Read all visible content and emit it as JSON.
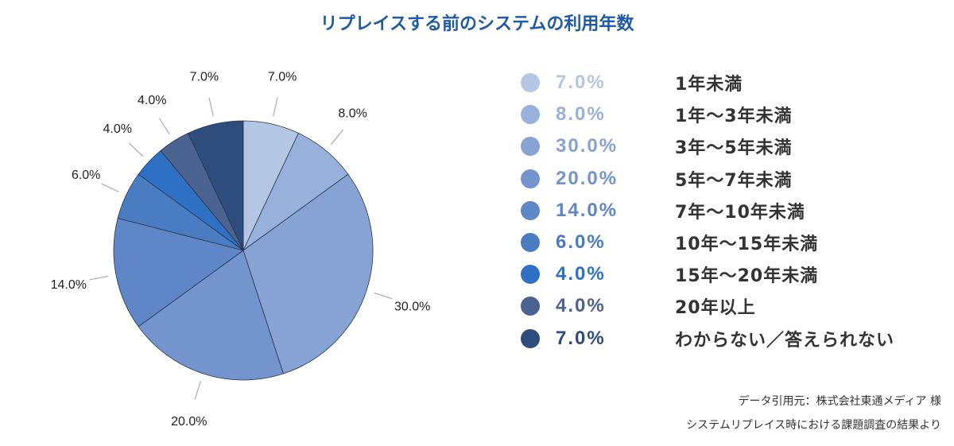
{
  "chart_data": {
    "type": "pie",
    "title": "リプレイスする前のシステムの利用年数",
    "categories": [
      "1年未満",
      "1年〜3年未満",
      "3年〜5年未満",
      "5年〜7年未満",
      "7年〜10年未満",
      "10年〜15年未満",
      "15年〜20年未満",
      "20年以上",
      "わからない／答えられない"
    ],
    "values": [
      7.0,
      8.0,
      30.0,
      20.0,
      14.0,
      6.0,
      4.0,
      4.0,
      7.0
    ],
    "slice_labels": [
      "7.0%",
      "8.0%",
      "30.0%",
      "20.0%",
      "14.0%",
      "6.0%",
      "4.0%",
      "4.0%",
      "7.0%"
    ],
    "legend_labels": [
      "7.0%",
      "8.0%",
      "30.0%",
      "20.0%",
      "14.0%",
      "6.0%",
      "4.0%",
      "4.0%",
      "7.0%"
    ],
    "colors": [
      "#b3c6e4",
      "#98b1da",
      "#86a3d3",
      "#7394cc",
      "#5f86c6",
      "#4a7cc2",
      "#2e70c3",
      "#4a6390",
      "#2e4c7c"
    ],
    "legend_position": "right"
  },
  "source": {
    "line1": "データ引用元：株式会社東通メディア 様",
    "line2": "システムリプレイス時における課題調査の結果より"
  }
}
